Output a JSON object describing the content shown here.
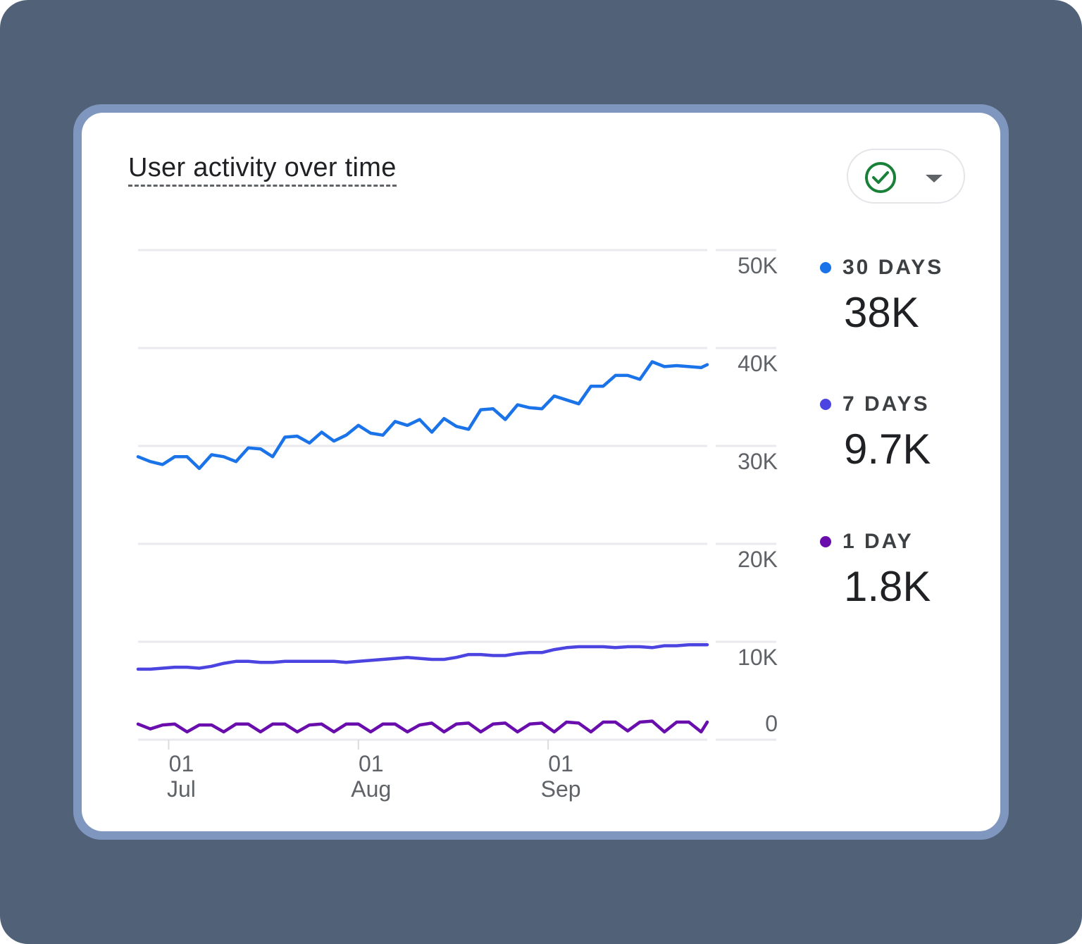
{
  "card": {
    "title": "User activity over time"
  },
  "compare_button": {
    "icon": "check-circle-icon",
    "caret_icon": "caret-down-icon",
    "check_color": "#188038"
  },
  "legend": [
    {
      "label": "30 DAYS",
      "value": "38K",
      "color": "#1a73e8"
    },
    {
      "label": "7 DAYS",
      "value": "9.7K",
      "color": "#4c44e0"
    },
    {
      "label": "1 DAY",
      "value": "1.8K",
      "color": "#6a0dad"
    }
  ],
  "chart_data": {
    "type": "line",
    "title": "User activity over time",
    "ylim": [
      0,
      50000
    ],
    "yticks": [
      0,
      10000,
      20000,
      30000,
      40000,
      50000
    ],
    "ytick_labels": [
      "0",
      "10K",
      "20K",
      "30K",
      "40K",
      "50K"
    ],
    "xlim": [
      "2023-06-26",
      "2023-09-27"
    ],
    "xticks": [
      {
        "date": "2023-07-01",
        "day": "01",
        "month": "Jul"
      },
      {
        "date": "2023-08-01",
        "day": "01",
        "month": "Aug"
      },
      {
        "date": "2023-09-01",
        "day": "01",
        "month": "Sep"
      }
    ],
    "grid": true,
    "legend_position": "right",
    "series": [
      {
        "name": "30 DAYS",
        "color": "#1a73e8",
        "x": [
          "2023-06-26",
          "2023-06-28",
          "2023-06-30",
          "2023-07-02",
          "2023-07-04",
          "2023-07-06",
          "2023-07-08",
          "2023-07-10",
          "2023-07-12",
          "2023-07-14",
          "2023-07-16",
          "2023-07-18",
          "2023-07-20",
          "2023-07-22",
          "2023-07-24",
          "2023-07-26",
          "2023-07-28",
          "2023-07-30",
          "2023-08-01",
          "2023-08-03",
          "2023-08-05",
          "2023-08-07",
          "2023-08-09",
          "2023-08-11",
          "2023-08-13",
          "2023-08-15",
          "2023-08-17",
          "2023-08-19",
          "2023-08-21",
          "2023-08-23",
          "2023-08-25",
          "2023-08-27",
          "2023-08-29",
          "2023-08-31",
          "2023-09-02",
          "2023-09-04",
          "2023-09-06",
          "2023-09-08",
          "2023-09-10",
          "2023-09-12",
          "2023-09-14",
          "2023-09-16",
          "2023-09-18",
          "2023-09-20",
          "2023-09-22",
          "2023-09-24",
          "2023-09-26",
          "2023-09-27"
        ],
        "y": [
          28900,
          28400,
          28100,
          28900,
          28900,
          27700,
          29100,
          28900,
          28400,
          29800,
          29700,
          28900,
          30900,
          31000,
          30300,
          31400,
          30500,
          31100,
          32100,
          31300,
          31100,
          32500,
          32100,
          32700,
          31400,
          32800,
          32000,
          31700,
          33700,
          33800,
          32700,
          34200,
          33900,
          33800,
          35100,
          34700,
          34300,
          36100,
          36100,
          37200,
          37200,
          36800,
          38600,
          38100,
          38200,
          38100,
          38000,
          38300
        ]
      },
      {
        "name": "7 DAYS",
        "color": "#4c44e0",
        "x": [
          "2023-06-26",
          "2023-06-28",
          "2023-06-30",
          "2023-07-02",
          "2023-07-04",
          "2023-07-06",
          "2023-07-08",
          "2023-07-10",
          "2023-07-12",
          "2023-07-14",
          "2023-07-16",
          "2023-07-18",
          "2023-07-20",
          "2023-07-22",
          "2023-07-24",
          "2023-07-26",
          "2023-07-28",
          "2023-07-30",
          "2023-08-01",
          "2023-08-03",
          "2023-08-05",
          "2023-08-07",
          "2023-08-09",
          "2023-08-11",
          "2023-08-13",
          "2023-08-15",
          "2023-08-17",
          "2023-08-19",
          "2023-08-21",
          "2023-08-23",
          "2023-08-25",
          "2023-08-27",
          "2023-08-29",
          "2023-08-31",
          "2023-09-02",
          "2023-09-04",
          "2023-09-06",
          "2023-09-08",
          "2023-09-10",
          "2023-09-12",
          "2023-09-14",
          "2023-09-16",
          "2023-09-18",
          "2023-09-20",
          "2023-09-22",
          "2023-09-24",
          "2023-09-26",
          "2023-09-27"
        ],
        "y": [
          7200,
          7200,
          7300,
          7400,
          7400,
          7300,
          7500,
          7800,
          8000,
          8000,
          7900,
          7900,
          8000,
          8000,
          8000,
          8000,
          8000,
          7900,
          8000,
          8100,
          8200,
          8300,
          8400,
          8300,
          8200,
          8200,
          8400,
          8700,
          8700,
          8600,
          8600,
          8800,
          8900,
          8900,
          9200,
          9400,
          9500,
          9500,
          9500,
          9400,
          9500,
          9500,
          9400,
          9600,
          9600,
          9700,
          9700,
          9700
        ]
      },
      {
        "name": "1 DAY",
        "color": "#6a0dad",
        "x": [
          "2023-06-26",
          "2023-06-28",
          "2023-06-30",
          "2023-07-02",
          "2023-07-04",
          "2023-07-06",
          "2023-07-08",
          "2023-07-10",
          "2023-07-12",
          "2023-07-14",
          "2023-07-16",
          "2023-07-18",
          "2023-07-20",
          "2023-07-22",
          "2023-07-24",
          "2023-07-26",
          "2023-07-28",
          "2023-07-30",
          "2023-08-01",
          "2023-08-03",
          "2023-08-05",
          "2023-08-07",
          "2023-08-09",
          "2023-08-11",
          "2023-08-13",
          "2023-08-15",
          "2023-08-17",
          "2023-08-19",
          "2023-08-21",
          "2023-08-23",
          "2023-08-25",
          "2023-08-27",
          "2023-08-29",
          "2023-08-31",
          "2023-09-02",
          "2023-09-04",
          "2023-09-06",
          "2023-09-08",
          "2023-09-10",
          "2023-09-12",
          "2023-09-14",
          "2023-09-16",
          "2023-09-18",
          "2023-09-20",
          "2023-09-22",
          "2023-09-24",
          "2023-09-26",
          "2023-09-27"
        ],
        "y": [
          1600,
          1100,
          1500,
          1600,
          800,
          1500,
          1500,
          800,
          1600,
          1600,
          800,
          1600,
          1600,
          800,
          1500,
          1600,
          800,
          1600,
          1600,
          800,
          1600,
          1600,
          800,
          1500,
          1700,
          800,
          1600,
          1700,
          800,
          1600,
          1700,
          800,
          1600,
          1700,
          800,
          1800,
          1700,
          800,
          1800,
          1800,
          900,
          1800,
          1900,
          800,
          1800,
          1800,
          800,
          1800
        ]
      }
    ]
  }
}
